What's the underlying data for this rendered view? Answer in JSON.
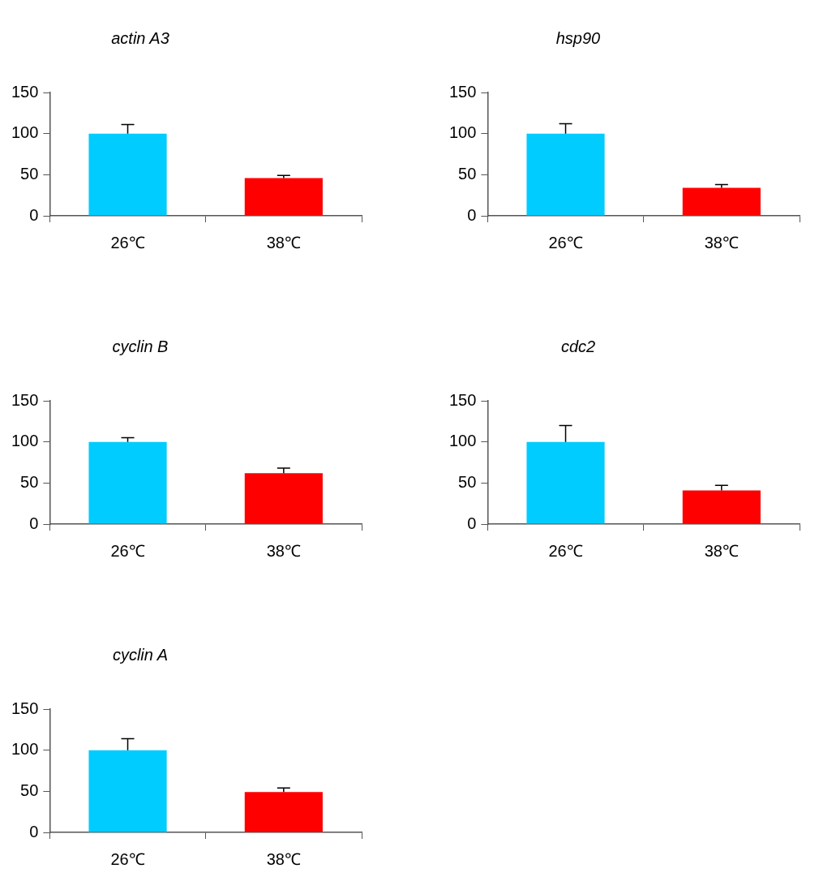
{
  "chart_data": [
    {
      "type": "bar",
      "title": "actin A3",
      "categories": [
        "26℃",
        "38℃"
      ],
      "values": [
        100,
        46
      ],
      "colors": [
        "#00ccff",
        "#ff0000"
      ],
      "errors": [
        [
          100,
          111
        ],
        [
          46,
          49
        ]
      ],
      "ylim": [
        0,
        150
      ],
      "yticks": [
        0,
        50,
        100,
        150
      ],
      "grid": false,
      "legend": false
    },
    {
      "type": "bar",
      "title": "hsp90",
      "categories": [
        "26℃",
        "38℃"
      ],
      "values": [
        100,
        34
      ],
      "colors": [
        "#00ccff",
        "#ff0000"
      ],
      "errors": [
        [
          100,
          112
        ],
        [
          34,
          38
        ]
      ],
      "ylim": [
        0,
        150
      ],
      "yticks": [
        0,
        50,
        100,
        150
      ],
      "grid": false,
      "legend": false
    },
    {
      "type": "bar",
      "title": "cyclin B",
      "categories": [
        "26℃",
        "38℃"
      ],
      "values": [
        100,
        62
      ],
      "colors": [
        "#00ccff",
        "#ff0000"
      ],
      "errors": [
        [
          100,
          105
        ],
        [
          62,
          68
        ]
      ],
      "ylim": [
        0,
        150
      ],
      "yticks": [
        0,
        50,
        100,
        150
      ],
      "grid": false,
      "legend": false
    },
    {
      "type": "bar",
      "title": "cdc2",
      "categories": [
        "26℃",
        "38℃"
      ],
      "values": [
        100,
        41
      ],
      "colors": [
        "#00ccff",
        "#ff0000"
      ],
      "errors": [
        [
          100,
          120
        ],
        [
          41,
          47
        ]
      ],
      "ylim": [
        0,
        150
      ],
      "yticks": [
        0,
        50,
        100,
        150
      ],
      "grid": false,
      "legend": false
    },
    {
      "type": "bar",
      "title": "cyclin A",
      "categories": [
        "26℃",
        "38℃"
      ],
      "values": [
        100,
        49
      ],
      "colors": [
        "#00ccff",
        "#ff0000"
      ],
      "errors": [
        [
          100,
          114
        ],
        [
          49,
          54
        ]
      ],
      "ylim": [
        0,
        150
      ],
      "yticks": [
        0,
        50,
        100,
        150
      ],
      "grid": false,
      "legend": false
    }
  ]
}
